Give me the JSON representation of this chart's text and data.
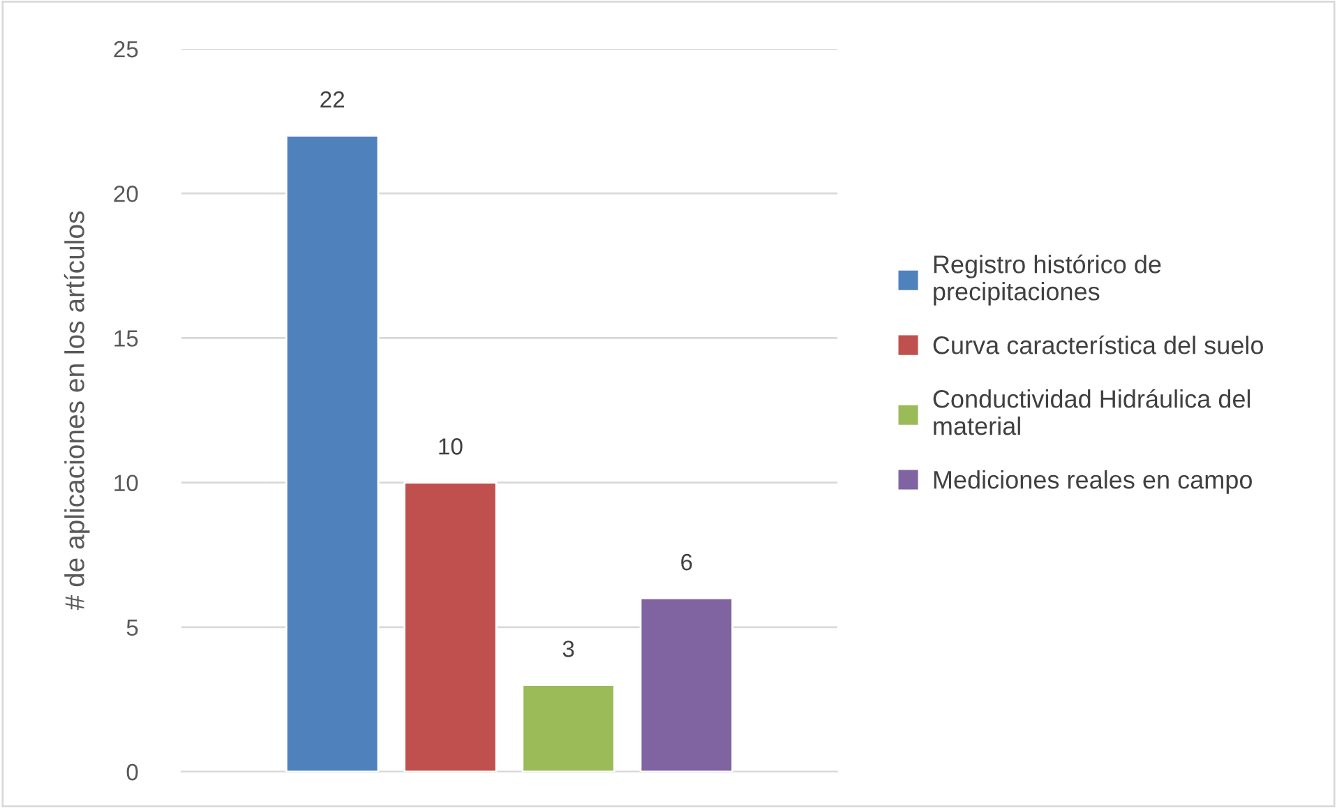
{
  "chart_data": {
    "type": "bar",
    "ylabel": "# de aplicaciones en los artículos",
    "categories": [
      null
    ],
    "series": [
      {
        "name": "Registro histórico de precipitaciones",
        "color": "#4f81bd",
        "values": [
          22
        ]
      },
      {
        "name": "Curva característica del suelo",
        "color": "#c0504d",
        "values": [
          10
        ]
      },
      {
        "name": "Conductividad Hidráulica del material",
        "color": "#9bbb59",
        "values": [
          3
        ]
      },
      {
        "name": "Mediciones reales en campo",
        "color": "#8064a2",
        "values": [
          6
        ]
      }
    ],
    "ylim": [
      0,
      25
    ],
    "yticks": [
      0,
      5,
      10,
      15,
      20,
      25
    ],
    "grid": "y",
    "legend": "right",
    "data_labels": true
  }
}
